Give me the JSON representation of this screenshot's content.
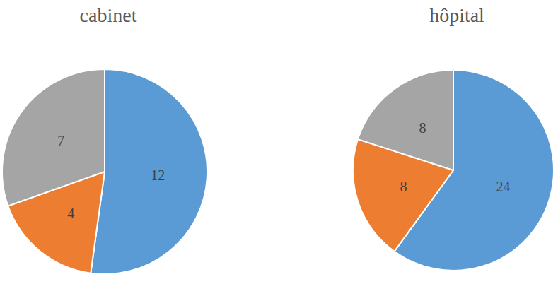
{
  "chart_data": [
    {
      "type": "pie",
      "title": "cabinet",
      "values": [
        12,
        4,
        7
      ],
      "colors": [
        "#5b9bd5",
        "#ed7d31",
        "#a5a5a5"
      ],
      "data_labels": true
    },
    {
      "type": "pie",
      "title": "hôpital",
      "values": [
        24,
        8,
        8
      ],
      "colors": [
        "#5b9bd5",
        "#ed7d31",
        "#a5a5a5"
      ],
      "data_labels": true
    }
  ]
}
